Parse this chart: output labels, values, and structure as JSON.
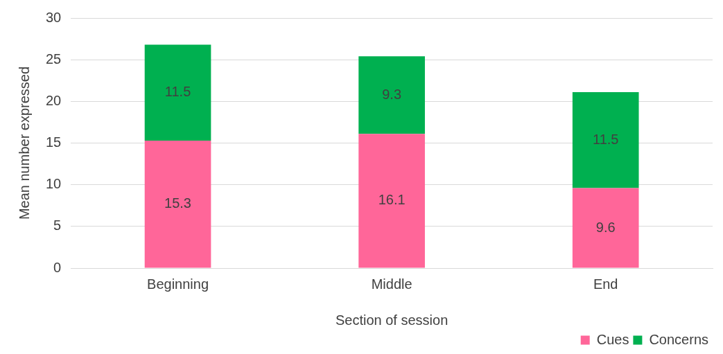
{
  "chart_data": {
    "type": "bar",
    "stacked": true,
    "xlabel": "Section of session",
    "ylabel": "Mean number expressed",
    "categories": [
      "Beginning",
      "Middle",
      "End"
    ],
    "series": [
      {
        "name": "Cues",
        "color": "#ff6699",
        "values": [
          15.3,
          16.1,
          9.6
        ]
      },
      {
        "name": "Concerns",
        "color": "#00b050",
        "values": [
          11.5,
          9.3,
          11.5
        ]
      }
    ],
    "ylim": [
      0,
      30
    ],
    "yticks": [
      0,
      5,
      10,
      15,
      20,
      25,
      30
    ],
    "grid": "y",
    "legend": "bottom right",
    "data_labels": true
  }
}
